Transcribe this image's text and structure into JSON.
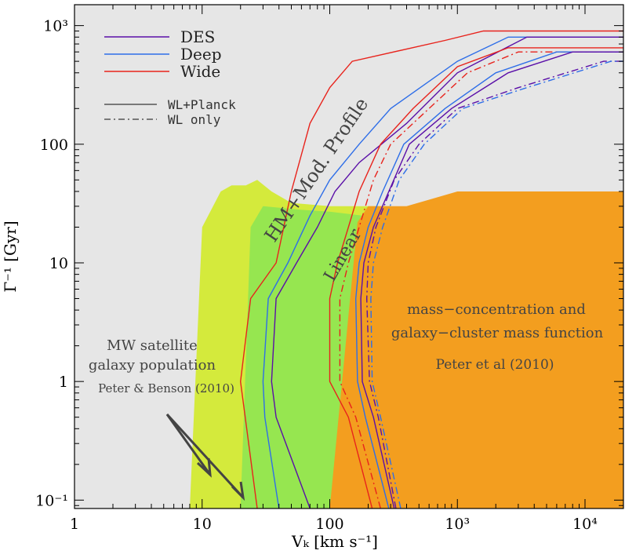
{
  "chart_data": {
    "type": "area",
    "xlabel": "Vₖ [km s⁻¹]",
    "ylabel": "Γ⁻¹ [Gyr]",
    "xscale": "log",
    "yscale": "log",
    "xlim": [
      1,
      20000
    ],
    "ylim": [
      0.085,
      1500
    ],
    "x_tick_labels": [
      "1",
      "10",
      "100",
      "10³",
      "10⁴"
    ],
    "x_tick_values": [
      1,
      10,
      100,
      1000,
      10000
    ],
    "y_tick_labels": [
      "10⁻¹",
      "1",
      "10",
      "100",
      "10³"
    ],
    "y_tick_values": [
      0.1,
      1,
      10,
      100,
      1000
    ],
    "colors": {
      "background": "#e6e6e6",
      "des": "#5a0fa8",
      "deep": "#2e6ee8",
      "wide": "#e8231c",
      "mw_region": "#d4ea3c",
      "linear_region": "#96e650",
      "cluster_region": "#f39e1f",
      "arrow": "#444444"
    },
    "regions": [
      {
        "name": "mw-satellite-region",
        "color_key": "mw_region",
        "points": [
          [
            8,
            0.085
          ],
          [
            10,
            20
          ],
          [
            14,
            40
          ],
          [
            17,
            45
          ],
          [
            22,
            45
          ],
          [
            27,
            50
          ],
          [
            35,
            40
          ],
          [
            50,
            32
          ],
          [
            100,
            30
          ],
          [
            300,
            30
          ],
          [
            350,
            0.085
          ]
        ]
      },
      {
        "name": "linear-region",
        "color_key": "linear_region",
        "points": [
          [
            20,
            0.085
          ],
          [
            24,
            20
          ],
          [
            30,
            30
          ],
          [
            60,
            28
          ],
          [
            100,
            27
          ],
          [
            180,
            25
          ],
          [
            110,
            0.085
          ]
        ]
      },
      {
        "name": "cluster-region",
        "color_key": "cluster_region",
        "points": [
          [
            100,
            0.085
          ],
          [
            165,
            22
          ],
          [
            200,
            30
          ],
          [
            400,
            30
          ],
          [
            1000,
            40
          ],
          [
            20000,
            40
          ],
          [
            20000,
            0.085
          ]
        ]
      }
    ],
    "series": [
      {
        "name": "Wide",
        "style": "solid",
        "color_key": "wide",
        "points": [
          [
            27,
            0.085
          ],
          [
            20,
            1
          ],
          [
            24,
            5
          ],
          [
            38,
            10
          ],
          [
            50,
            40
          ],
          [
            70,
            150
          ],
          [
            100,
            300
          ],
          [
            150,
            500
          ],
          [
            800,
            750
          ],
          [
            1600,
            900
          ],
          [
            20000,
            900
          ]
        ]
      },
      {
        "name": "Deep",
        "style": "solid",
        "color_key": "deep",
        "points": [
          [
            40,
            0.085
          ],
          [
            31,
            0.5
          ],
          [
            30,
            1
          ],
          [
            33,
            5
          ],
          [
            47,
            10
          ],
          [
            70,
            25
          ],
          [
            100,
            50
          ],
          [
            170,
            100
          ],
          [
            300,
            200
          ],
          [
            1000,
            500
          ],
          [
            2500,
            800
          ],
          [
            20000,
            800
          ]
        ]
      },
      {
        "name": "DES",
        "style": "solid",
        "color_key": "des",
        "points": [
          [
            70,
            0.085
          ],
          [
            38,
            0.5
          ],
          [
            35,
            1
          ],
          [
            38,
            5
          ],
          [
            55,
            10
          ],
          [
            80,
            20
          ],
          [
            110,
            40
          ],
          [
            170,
            70
          ],
          [
            400,
            150
          ],
          [
            1000,
            400
          ],
          [
            3500,
            800
          ],
          [
            20000,
            800
          ]
        ]
      },
      {
        "name": "Wide",
        "style": "solid",
        "color_key": "wide",
        "points": [
          [
            215,
            0.085
          ],
          [
            140,
            0.5
          ],
          [
            100,
            1
          ],
          [
            100,
            5
          ],
          [
            115,
            10
          ],
          [
            140,
            20
          ],
          [
            170,
            40
          ],
          [
            250,
            100
          ],
          [
            450,
            200
          ],
          [
            1000,
            450
          ],
          [
            2500,
            650
          ],
          [
            20000,
            650
          ]
        ]
      },
      {
        "name": "Wide",
        "style": "dashdot",
        "color_key": "wide",
        "points": [
          [
            250,
            0.085
          ],
          [
            160,
            0.5
          ],
          [
            120,
            1
          ],
          [
            120,
            5
          ],
          [
            140,
            10
          ],
          [
            170,
            20
          ],
          [
            220,
            50
          ],
          [
            300,
            100
          ],
          [
            600,
            200
          ],
          [
            1200,
            400
          ],
          [
            3000,
            600
          ],
          [
            20000,
            600
          ]
        ]
      },
      {
        "name": "Deep",
        "style": "solid",
        "color_key": "deep",
        "points": [
          [
            290,
            0.085
          ],
          [
            190,
            0.5
          ],
          [
            165,
            1
          ],
          [
            160,
            5
          ],
          [
            170,
            10
          ],
          [
            200,
            20
          ],
          [
            260,
            40
          ],
          [
            380,
            100
          ],
          [
            800,
            200
          ],
          [
            2000,
            400
          ],
          [
            6000,
            600
          ],
          [
            20000,
            600
          ]
        ]
      },
      {
        "name": "DES",
        "style": "solid",
        "color_key": "des",
        "points": [
          [
            320,
            0.085
          ],
          [
            220,
            0.5
          ],
          [
            180,
            1
          ],
          [
            175,
            5
          ],
          [
            185,
            10
          ],
          [
            220,
            20
          ],
          [
            290,
            40
          ],
          [
            420,
            100
          ],
          [
            900,
            200
          ],
          [
            2500,
            400
          ],
          [
            8000,
            600
          ],
          [
            20000,
            600
          ]
        ]
      },
      {
        "name": "DES",
        "style": "dashdot",
        "color_key": "des",
        "points": [
          [
            330,
            0.085
          ],
          [
            240,
            0.5
          ],
          [
            205,
            1
          ],
          [
            195,
            5
          ],
          [
            200,
            10
          ],
          [
            230,
            20
          ],
          [
            320,
            50
          ],
          [
            500,
            100
          ],
          [
            1000,
            200
          ],
          [
            3000,
            300
          ],
          [
            14000,
            500
          ],
          [
            20000,
            500
          ]
        ]
      },
      {
        "name": "Deep",
        "style": "dashdot",
        "color_key": "deep",
        "points": [
          [
            360,
            0.085
          ],
          [
            250,
            0.5
          ],
          [
            215,
            1
          ],
          [
            210,
            5
          ],
          [
            220,
            10
          ],
          [
            260,
            20
          ],
          [
            350,
            50
          ],
          [
            550,
            100
          ],
          [
            1100,
            200
          ],
          [
            3500,
            300
          ],
          [
            16000,
            500
          ],
          [
            20000,
            500
          ]
        ]
      }
    ],
    "legend": {
      "position": "top-left",
      "entries": [
        {
          "label": "DES",
          "color_key": "des"
        },
        {
          "label": "Deep",
          "color_key": "deep"
        },
        {
          "label": "Wide",
          "color_key": "wide"
        }
      ],
      "style_entries": [
        {
          "label": "WL+Planck",
          "style": "solid"
        },
        {
          "label": "WL only",
          "style": "dashdot"
        }
      ]
    },
    "annotations": {
      "hm_profile": "HM+Mod. Profile",
      "linear": "Linear",
      "cluster_line1": "mass−concentration and",
      "cluster_line2": "galaxy−cluster mass function",
      "cluster_ref": "Peter et al (2010)",
      "mw_line1": "MW satellite",
      "mw_line2": "galaxy population",
      "mw_ref": "Peter & Benson (2010)"
    }
  }
}
